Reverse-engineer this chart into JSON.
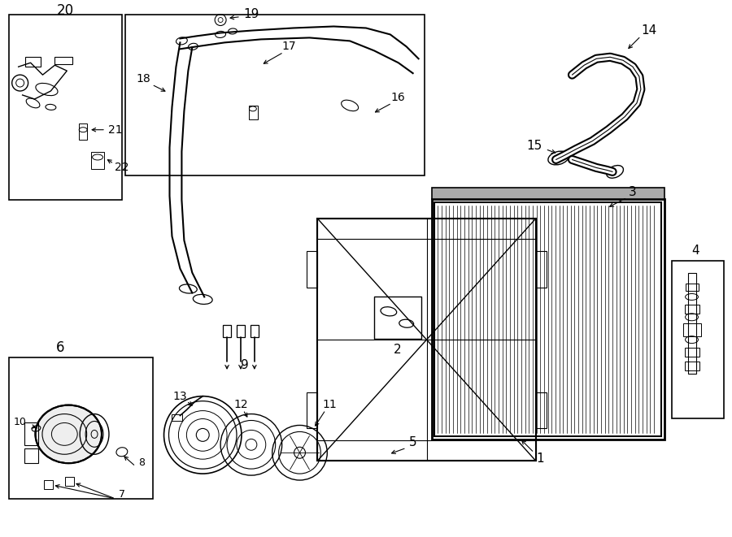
{
  "bg_color": "#ffffff",
  "line_color": "#000000",
  "fig_width": 9.0,
  "fig_height": 6.61
}
